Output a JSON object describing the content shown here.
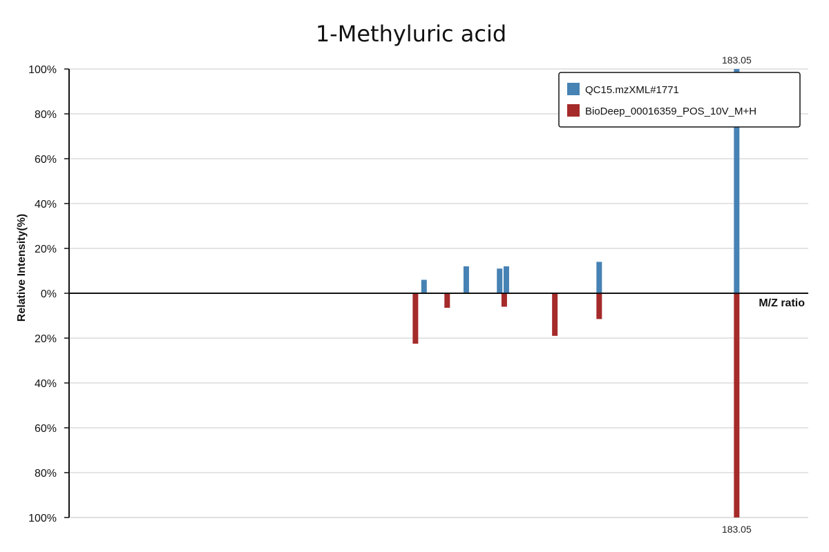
{
  "chart_data": {
    "type": "bar",
    "title": "1-Methyluric acid",
    "xlabel": "M/Z ratio",
    "ylabel": "Relative Intensity(%)",
    "ylim": [
      -100,
      100
    ],
    "y_ticks": [
      {
        "value": 100,
        "label": "100%"
      },
      {
        "value": 80,
        "label": "80%"
      },
      {
        "value": 60,
        "label": "60%"
      },
      {
        "value": 40,
        "label": "40%"
      },
      {
        "value": 20,
        "label": "20%"
      },
      {
        "value": 0,
        "label": "0%"
      },
      {
        "value": -20,
        "label": "20%"
      },
      {
        "value": -40,
        "label": "40%"
      },
      {
        "value": -60,
        "label": "60%"
      },
      {
        "value": -80,
        "label": "80%"
      },
      {
        "value": -100,
        "label": "100%"
      }
    ],
    "grid": true,
    "legend_position": "top-right",
    "series": [
      {
        "name": "QC15.mzXML#1771",
        "color": "#4682b4",
        "direction": "up",
        "peaks": [
          {
            "mz": 109.03,
            "intensity": 6
          },
          {
            "mz": 119.03,
            "intensity": 12
          },
          {
            "mz": 126.93,
            "intensity": 11
          },
          {
            "mz": 128.52,
            "intensity": 12
          },
          {
            "mz": 150.5,
            "intensity": 14
          },
          {
            "mz": 183.05,
            "intensity": 100,
            "label": "183.05"
          }
        ]
      },
      {
        "name": "BioDeep_00016359_POS_10V_M+H",
        "color": "#a52a2a",
        "direction": "down",
        "peaks": [
          {
            "mz": 107.0,
            "intensity": 22.5
          },
          {
            "mz": 114.51,
            "intensity": 6.5
          },
          {
            "mz": 128.02,
            "intensity": 6
          },
          {
            "mz": 140.0,
            "intensity": 19
          },
          {
            "mz": 150.5,
            "intensity": 11.5
          },
          {
            "mz": 183.05,
            "intensity": 100,
            "label": "183.05"
          }
        ]
      }
    ]
  }
}
